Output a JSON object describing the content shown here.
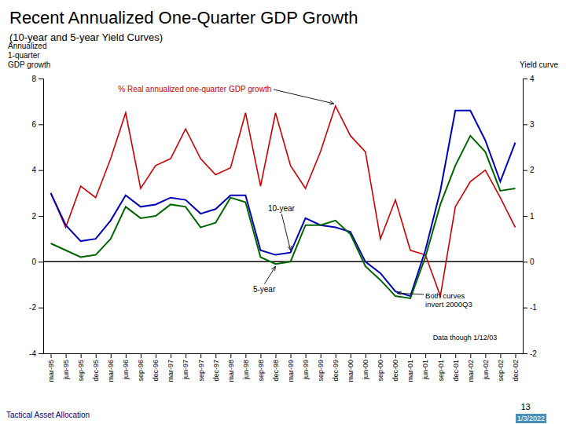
{
  "chart_data": {
    "type": "line",
    "title": "Recent Annualized One-Quarter GDP Growth",
    "subtitle": "(10-year and 5-year Yield Curves)",
    "y_label": "Annualized\n1-quarter\nGDP growth",
    "y2_label": "Yield curve",
    "categories": [
      "mar-95",
      "jun-95",
      "sep-95",
      "dec-95",
      "mar-96",
      "jun-96",
      "sep-96",
      "dec-96",
      "mar-97",
      "jun-97",
      "sep-97",
      "dec-97",
      "mar-98",
      "jun-98",
      "sep-98",
      "dec-98",
      "mar-99",
      "jun-99",
      "sep-99",
      "dec-99",
      "mar-00",
      "jun-00",
      "sep-00",
      "dec-00",
      "mar-01",
      "jun-01",
      "sep-01",
      "dec-01",
      "mar-02",
      "jun-02",
      "sep-02",
      "dec-02"
    ],
    "series": [
      {
        "color": "#cc0000",
        "values": [
          3.0,
          1.5,
          3.3,
          2.8,
          4.5,
          6.5,
          3.2,
          4.2,
          4.5,
          5.8,
          4.5,
          3.8,
          4.1,
          6.5,
          3.3,
          6.5,
          4.2,
          3.2,
          4.8,
          6.8,
          5.5,
          4.8,
          1.0,
          2.7,
          0.5,
          0.3,
          -1.5,
          2.4,
          3.5,
          4.0,
          2.8,
          1.5
        ]
      },
      {
        "color": "#0000bb",
        "values": [
          3.0,
          1.6,
          0.9,
          1.0,
          1.8,
          2.9,
          2.4,
          2.5,
          2.8,
          2.7,
          2.1,
          2.3,
          2.9,
          2.9,
          0.5,
          0.3,
          0.4,
          1.9,
          1.6,
          1.5,
          1.3,
          0.0,
          -0.5,
          -1.3,
          -1.5,
          0.5,
          3.1,
          6.6,
          6.6,
          5.3,
          3.5,
          5.2
        ]
      },
      {
        "color": "#006600",
        "values": [
          0.8,
          0.5,
          0.2,
          0.3,
          1.0,
          2.4,
          1.9,
          2.0,
          2.5,
          2.4,
          1.5,
          1.7,
          2.8,
          2.6,
          0.2,
          -0.1,
          0.0,
          1.6,
          1.6,
          1.8,
          1.2,
          -0.2,
          -0.8,
          -1.5,
          -1.6,
          0.2,
          2.5,
          4.2,
          5.5,
          4.8,
          3.1,
          3.2
        ]
      }
    ],
    "ylim": [
      -4,
      8
    ],
    "yticks": [
      -4,
      -2,
      0,
      2,
      4,
      6,
      8
    ],
    "y2lim": [
      -2,
      4
    ],
    "y2ticks": [
      -2,
      -1,
      0,
      1,
      2,
      3,
      4
    ],
    "grid": false,
    "annotations": [
      "% Real annualized one-quarter GDP growth",
      "10-year",
      "5-year",
      "Both curves\ninvert 2000Q3",
      "Data though 1/12/03",
      "Tactical Asset Allocation",
      "13",
      "1/3/2022"
    ]
  }
}
